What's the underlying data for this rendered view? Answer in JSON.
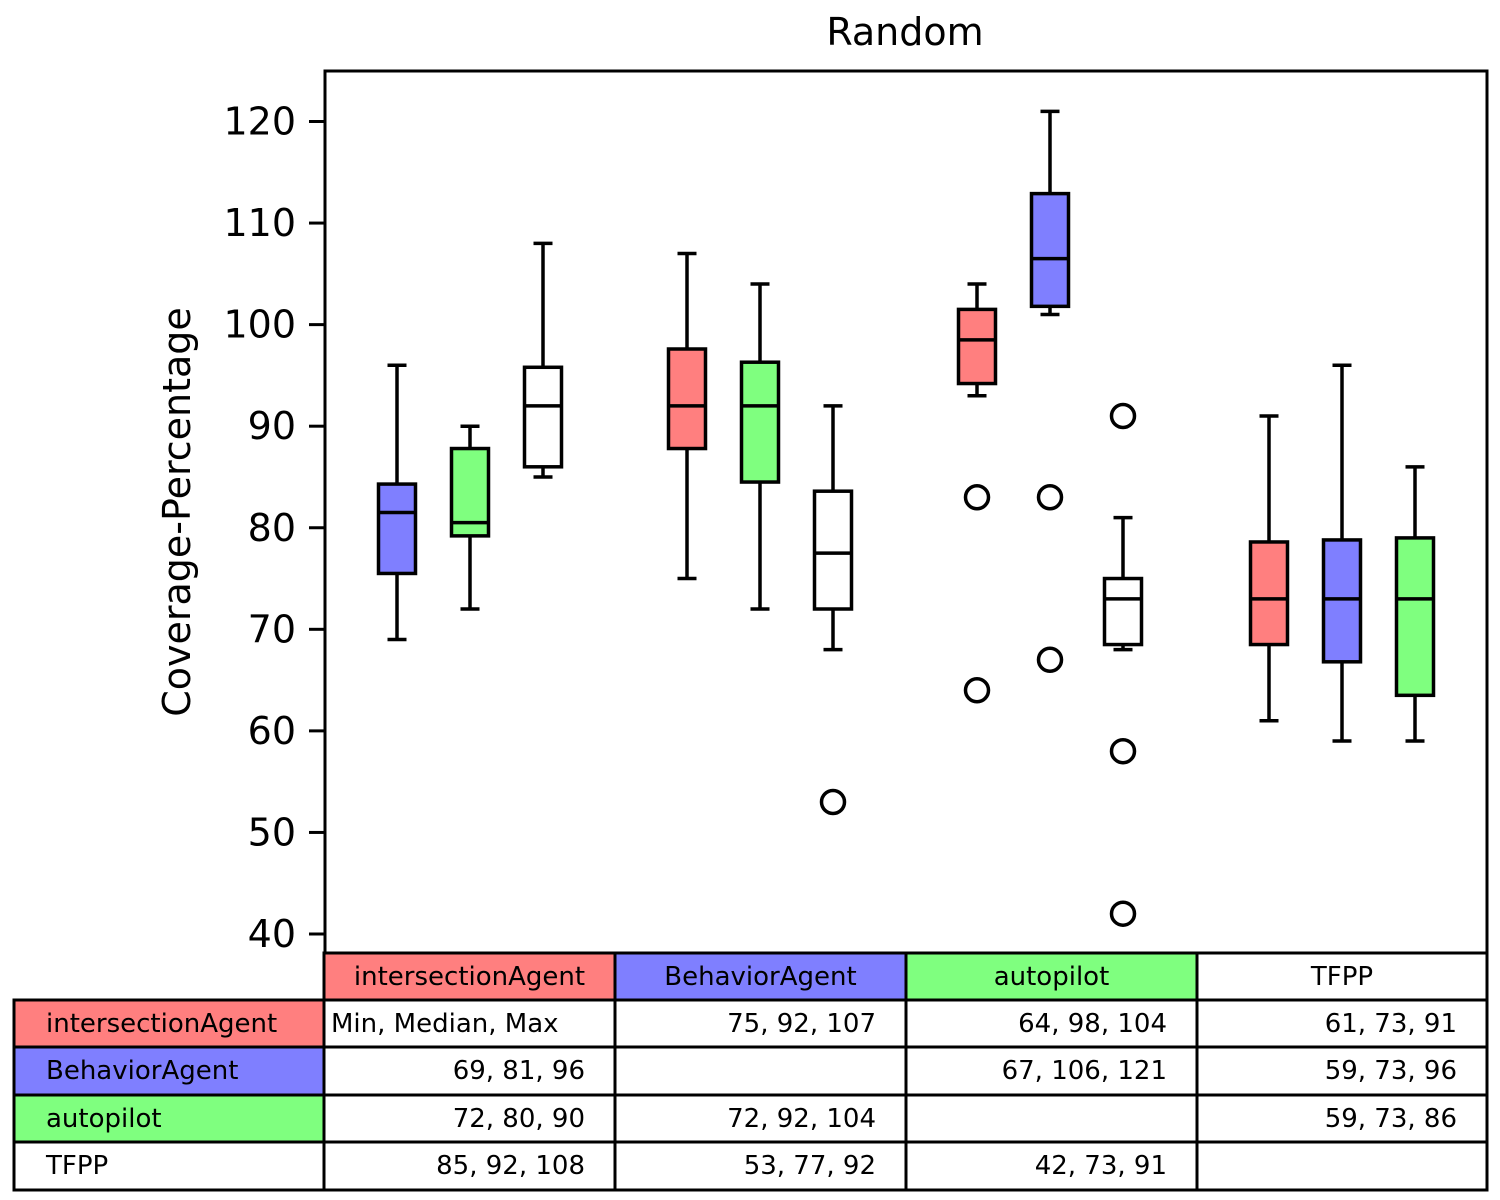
{
  "chart_data": {
    "type": "box",
    "title": "Random",
    "ylabel": "Coverage-Percentage",
    "xlabel": "",
    "ylim": [
      38,
      125
    ],
    "yticks": [
      40,
      50,
      60,
      70,
      80,
      90,
      100,
      110,
      120
    ],
    "grid": false,
    "groups": [
      "intersectionAgent",
      "BehaviorAgent",
      "autopilot",
      "TFPP"
    ],
    "series": [
      {
        "name": "intersectionAgent",
        "color": "#ff7f7f"
      },
      {
        "name": "BehaviorAgent",
        "color": "#7f7fff"
      },
      {
        "name": "autopilot",
        "color": "#7fff7f"
      },
      {
        "name": "TFPP",
        "color": "#ffffff"
      }
    ],
    "boxes": [
      {
        "group": 0,
        "series": 1,
        "whisker_low": 69,
        "q1": 75.5,
        "median": 81.5,
        "q3": 84.3,
        "whisker_high": 96,
        "outliers": []
      },
      {
        "group": 0,
        "series": 2,
        "whisker_low": 72,
        "q1": 79.2,
        "median": 80.5,
        "q3": 87.8,
        "whisker_high": 90,
        "outliers": []
      },
      {
        "group": 0,
        "series": 3,
        "whisker_low": 85,
        "q1": 86,
        "median": 92,
        "q3": 95.8,
        "whisker_high": 108,
        "outliers": []
      },
      {
        "group": 1,
        "series": 0,
        "whisker_low": 75,
        "q1": 87.8,
        "median": 92,
        "q3": 97.6,
        "whisker_high": 107,
        "outliers": []
      },
      {
        "group": 1,
        "series": 2,
        "whisker_low": 72,
        "q1": 84.5,
        "median": 92,
        "q3": 96.3,
        "whisker_high": 104,
        "outliers": []
      },
      {
        "group": 1,
        "series": 3,
        "whisker_low": 68,
        "q1": 72,
        "median": 77.5,
        "q3": 83.6,
        "whisker_high": 92,
        "outliers": [
          53
        ]
      },
      {
        "group": 2,
        "series": 0,
        "whisker_low": 93,
        "q1": 94.2,
        "median": 98.5,
        "q3": 101.5,
        "whisker_high": 104,
        "outliers": [
          83,
          64
        ]
      },
      {
        "group": 2,
        "series": 1,
        "whisker_low": 101,
        "q1": 101.8,
        "median": 106.5,
        "q3": 112.9,
        "whisker_high": 121,
        "outliers": [
          83,
          67
        ]
      },
      {
        "group": 2,
        "series": 3,
        "whisker_low": 68,
        "q1": 68.5,
        "median": 73,
        "q3": 75,
        "whisker_high": 81,
        "outliers": [
          91,
          58,
          42
        ]
      },
      {
        "group": 3,
        "series": 0,
        "whisker_low": 61,
        "q1": 68.5,
        "median": 73,
        "q3": 78.6,
        "whisker_high": 91,
        "outliers": []
      },
      {
        "group": 3,
        "series": 1,
        "whisker_low": 59,
        "q1": 66.8,
        "median": 73,
        "q3": 78.8,
        "whisker_high": 96,
        "outliers": []
      },
      {
        "group": 3,
        "series": 2,
        "whisker_low": 59,
        "q1": 63.5,
        "median": 73,
        "q3": 79,
        "whisker_high": 86,
        "outliers": []
      }
    ],
    "table": {
      "col_headers": [
        "intersectionAgent",
        "BehaviorAgent",
        "autopilot",
        "TFPP"
      ],
      "row_headers": [
        "intersectionAgent",
        "BehaviorAgent",
        "autopilot",
        "TFPP"
      ],
      "cells": [
        [
          "Min, Median, Max",
          "75, 92, 107",
          "64, 98, 104",
          "61, 73, 91"
        ],
        [
          "69, 81, 96",
          "",
          "67, 106, 121",
          "59, 73, 96"
        ],
        [
          "72, 80, 90",
          "72, 92, 104",
          "",
          "59, 73, 86"
        ],
        [
          "85, 92, 108",
          "53, 77, 92",
          "42, 73, 91",
          ""
        ]
      ]
    }
  }
}
